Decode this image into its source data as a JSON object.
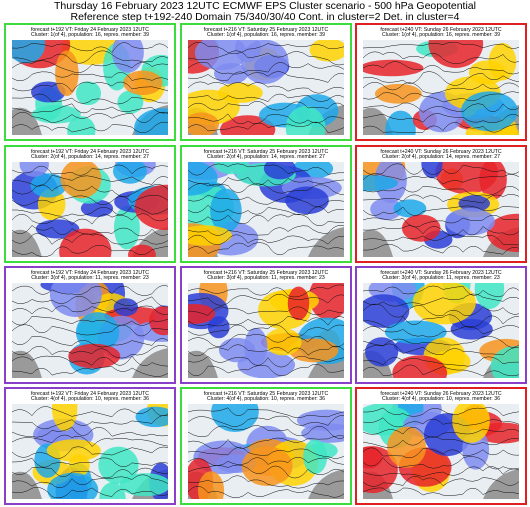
{
  "header": {
    "title": [
      "Thursday 16 February 2023 12UTC ECMWF EPS Cluster scenario - 500 hPa Geopotential",
      "Reference step t+192-240 Domain 75/340/30/40 Cont. in cluster=2 Det. in cluster=4"
    ]
  },
  "rows": [
    [
      {
        "forecast": "forecast t+192 VT: Friday 24 February 2023 12UTC",
        "cluster": "Cluster: 1(of 4), population: 16, repres. member: 39",
        "border": "#3ddc3d"
      },
      {
        "forecast": "forecast t+216 VT: Saturday 25 February 2023 12UTC",
        "cluster": "Cluster: 1(of 4), population: 16, repres. member: 39",
        "border": "#3ddc3d"
      },
      {
        "forecast": "forecast t+240 VT: Sunday 26 February 2023 12UTC",
        "cluster": "Cluster: 1(of 4), population: 16, repres. member: 39",
        "border": "#e02020"
      }
    ],
    [
      {
        "forecast": "forecast t+192 VT: Friday 24 February 2023 12UTC",
        "cluster": "Cluster: 2(of 4), population: 14, repres. member: 27",
        "border": "#3ddc3d"
      },
      {
        "forecast": "forecast t+216 VT: Saturday 25 February 2023 12UTC",
        "cluster": "Cluster: 2(of 4), population: 14, repres. member: 27",
        "border": "#3ddc3d"
      },
      {
        "forecast": "forecast t+240 VT: Sunday 26 February 2023 12UTC",
        "cluster": "Cluster: 2(of 4), population: 14, repres. member: 27",
        "border": "#e02020"
      }
    ],
    [
      {
        "forecast": "forecast t+192 VT: Friday 24 February 2023 12UTC",
        "cluster": "Cluster: 3(of 4), population: 11, repres. member: 23",
        "border": "#8a3fc8"
      },
      {
        "forecast": "forecast t+216 VT: Saturday 25 February 2023 12UTC",
        "cluster": "Cluster: 3(of 4), population: 11, repres. member: 23",
        "border": "#8a3fc8"
      },
      {
        "forecast": "forecast t+240 VT: Sunday 26 February 2023 12UTC",
        "cluster": "Cluster: 3(of 4), population: 11, repres. member: 23",
        "border": "#8a3fc8"
      }
    ],
    [
      {
        "forecast": "forecast t+192 VT: Friday 24 February 2023 12UTC",
        "cluster": "Cluster: 4(of 4), population: 10, repres. member: 36",
        "border": "#8a3fc8"
      },
      {
        "forecast": "forecast t+216 VT: Saturday 25 February 2023 12UTC",
        "cluster": "Cluster: 4(of 4), population: 10, repres. member: 36",
        "border": "#3ddc3d"
      },
      {
        "forecast": "forecast t+240 VT: Sunday 26 February 2023 12UTC",
        "cluster": "Cluster: 4(of 4), population: 10, repres. member: 36",
        "border": "#e02020"
      }
    ]
  ]
}
